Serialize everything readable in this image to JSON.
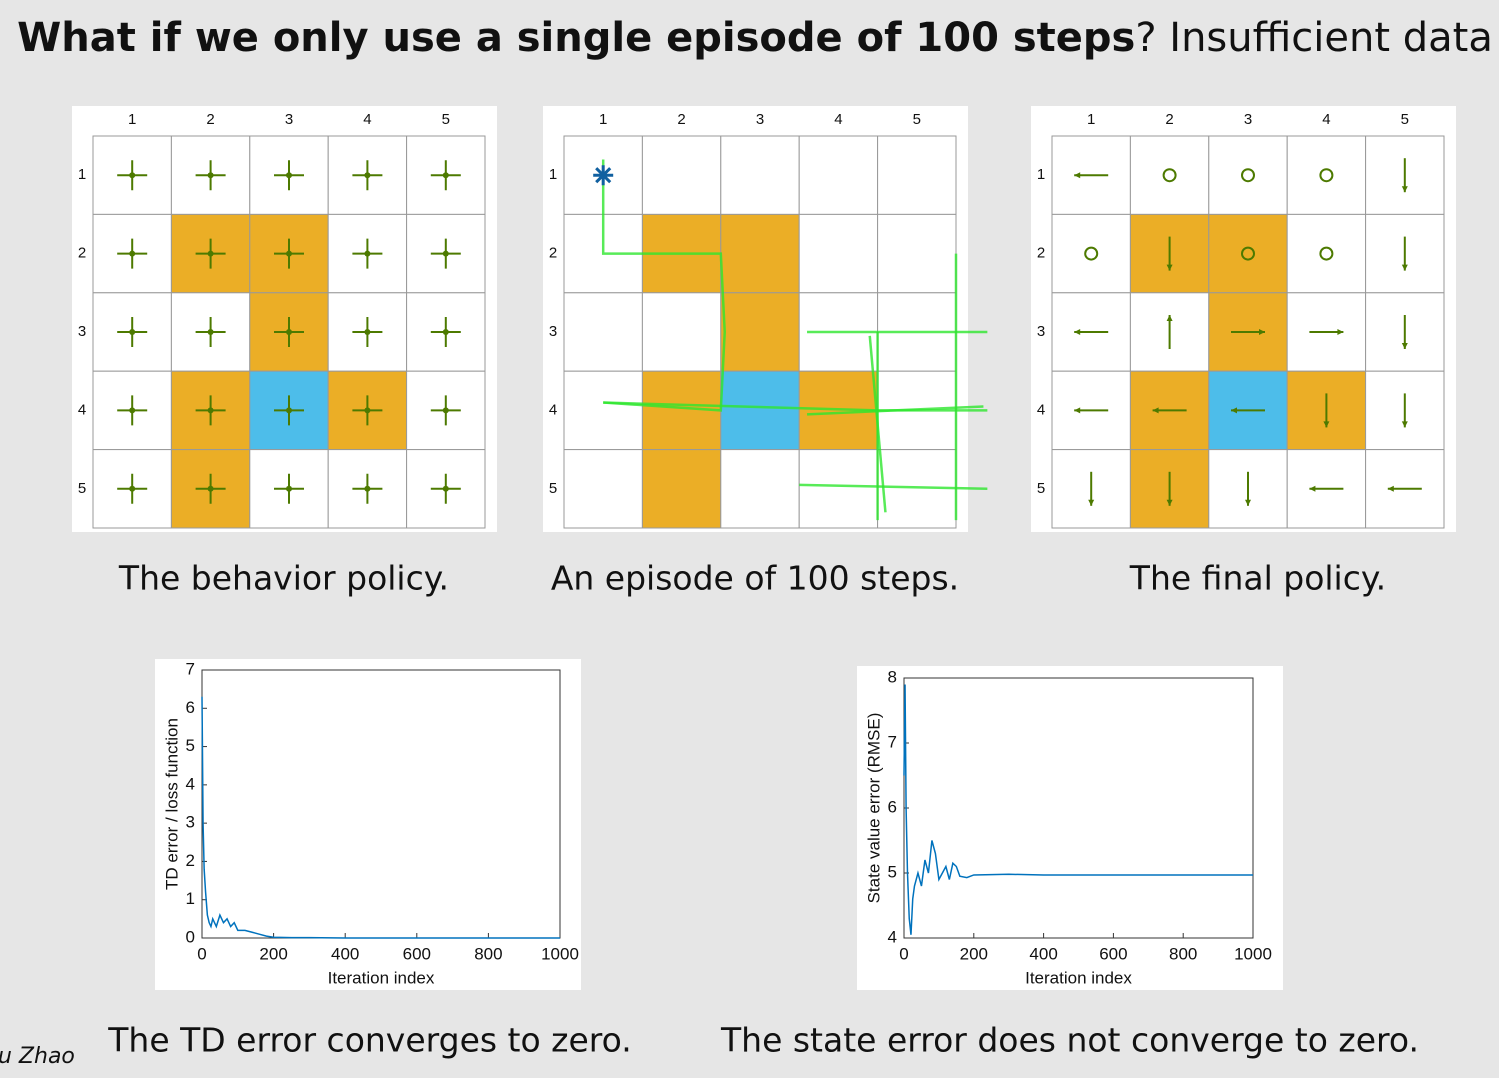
{
  "title": {
    "bold": "What if we only use a single episode of 100 steps",
    "rest": "? Insufficient data"
  },
  "grids": [
    {
      "caption": "The behavior policy.",
      "columns": [
        1,
        2,
        3,
        4,
        5
      ],
      "rows": [
        1,
        2,
        3,
        4,
        5
      ]
    },
    {
      "caption": "An episode of 100 steps.",
      "columns": [
        1,
        2,
        3,
        4,
        5
      ],
      "rows": [
        1,
        2,
        3,
        4,
        5
      ]
    },
    {
      "caption": "The final policy.",
      "columns": [
        1,
        2,
        3,
        4,
        5
      ],
      "rows": [
        1,
        2,
        3,
        4,
        5
      ]
    }
  ],
  "chart_data": [
    {
      "type": "line",
      "caption": "The TD error converges to zero.",
      "xlabel": "Iteration index",
      "ylabel": "TD error / loss function",
      "color": "#0072bd",
      "x": [
        0,
        3,
        6,
        10,
        15,
        20,
        25,
        30,
        40,
        50,
        60,
        70,
        80,
        90,
        100,
        120,
        140,
        160,
        180,
        200,
        250,
        300,
        400,
        500,
        600,
        700,
        800,
        900,
        1000
      ],
      "values": [
        6.3,
        3.0,
        1.8,
        1.2,
        0.6,
        0.4,
        0.3,
        0.5,
        0.3,
        0.6,
        0.4,
        0.5,
        0.3,
        0.4,
        0.2,
        0.2,
        0.15,
        0.1,
        0.05,
        0.02,
        0.01,
        0.01,
        0,
        0,
        0,
        0,
        0,
        0,
        0
      ],
      "xlim": [
        0,
        1000
      ],
      "xticks": [
        0,
        200,
        400,
        600,
        800,
        1000
      ],
      "ylim": [
        0,
        7
      ],
      "yticks": [
        0,
        1,
        2,
        3,
        4,
        5,
        6,
        7
      ]
    },
    {
      "type": "line",
      "caption": "The state error does not converge to zero.",
      "xlabel": "Iteration index",
      "ylabel": "State value error (RMSE)",
      "color": "#0072bd",
      "x": [
        0,
        3,
        6,
        10,
        15,
        20,
        25,
        30,
        40,
        50,
        60,
        70,
        80,
        90,
        100,
        110,
        120,
        130,
        140,
        150,
        160,
        180,
        200,
        300,
        400,
        500,
        600,
        700,
        800,
        900,
        1000
      ],
      "values": [
        6.5,
        7.9,
        6.0,
        5.0,
        4.3,
        4.05,
        4.6,
        4.8,
        5.0,
        4.8,
        5.2,
        5.0,
        5.5,
        5.3,
        4.9,
        5.0,
        5.1,
        4.9,
        5.15,
        5.1,
        4.95,
        4.93,
        4.97,
        4.98,
        4.97,
        4.97,
        4.97,
        4.97,
        4.97,
        4.97,
        4.97
      ],
      "xlim": [
        0,
        1000
      ],
      "xticks": [
        0,
        200,
        400,
        600,
        800,
        1000
      ],
      "ylim": [
        4,
        8
      ],
      "yticks": [
        4,
        5,
        6,
        7,
        8
      ]
    }
  ],
  "footer": "u Zhao"
}
